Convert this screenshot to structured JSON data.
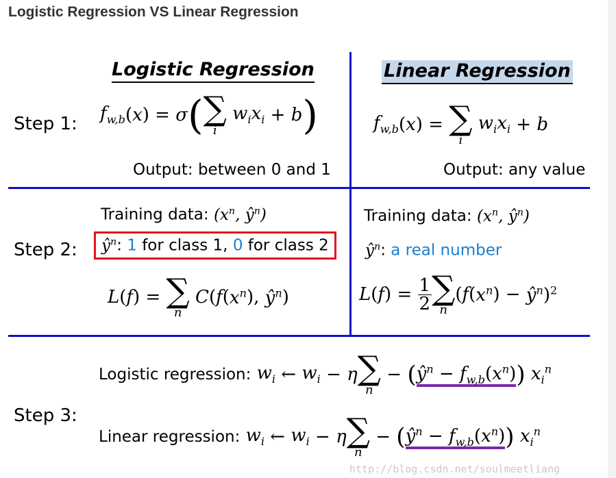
{
  "page_title": "Logistic Regression VS Linear Regression",
  "columns": {
    "logistic_title": "Logistic Regression",
    "linear_title": "Linear Regression"
  },
  "steps": {
    "step1": "Step 1:",
    "step2": "Step 2:",
    "step3": "Step 3:"
  },
  "step1": {
    "logistic_output": "Output: between 0 and 1",
    "linear_output": "Output: any value"
  },
  "step2": {
    "training_data_label": "Training data:",
    "logistic_class1_value": "1",
    "logistic_class1_text": " for class 1, ",
    "logistic_class2_value": "0",
    "logistic_class2_text": " for class 2",
    "linear_target": "a real number"
  },
  "step3": {
    "logistic_label": "Logistic regression:",
    "linear_label": "Linear regression:"
  },
  "watermark": "http://blog.csdn.net/soulmeetliang",
  "colors": {
    "divider": "#1010c8",
    "highlight_box": "#e0151b",
    "underline": "#7a2aa8",
    "accent_text": "#1a7fd0"
  }
}
